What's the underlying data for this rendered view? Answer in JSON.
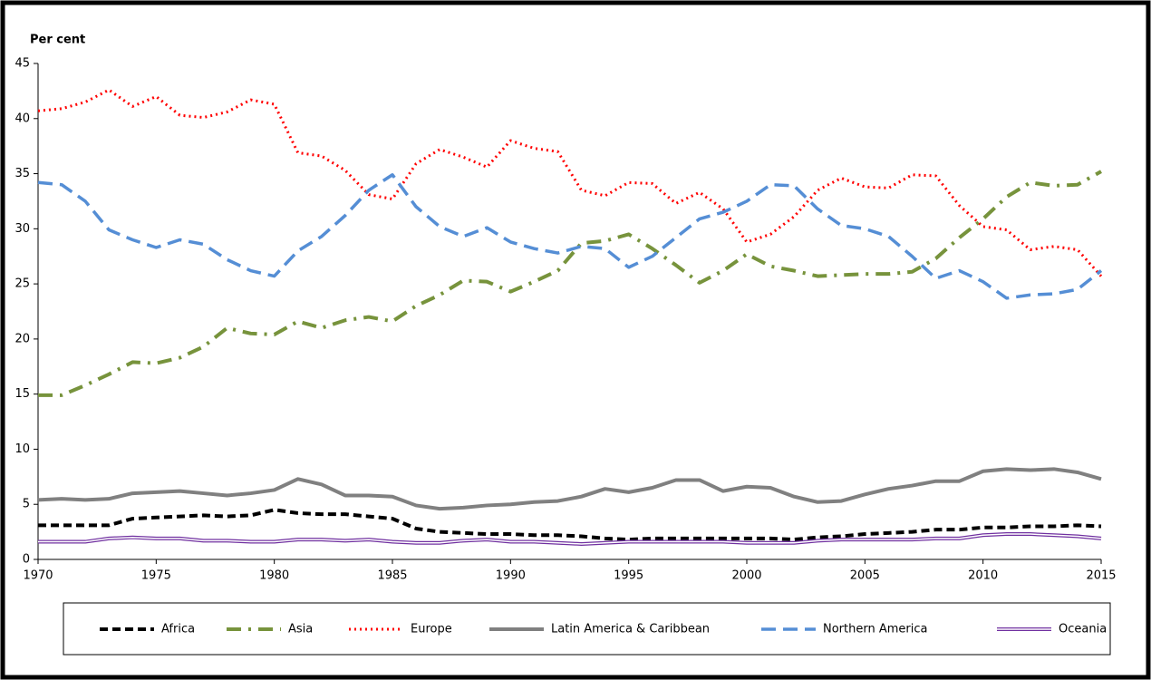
{
  "chart_data": {
    "type": "line",
    "y_label": "Per cent",
    "x": [
      1970,
      1971,
      1972,
      1973,
      1974,
      1975,
      1976,
      1977,
      1978,
      1979,
      1980,
      1981,
      1982,
      1983,
      1984,
      1985,
      1986,
      1987,
      1988,
      1989,
      1990,
      1991,
      1992,
      1993,
      1994,
      1995,
      1996,
      1997,
      1998,
      1999,
      2000,
      2001,
      2002,
      2003,
      2004,
      2005,
      2006,
      2007,
      2008,
      2009,
      2010,
      2011,
      2012,
      2013,
      2014,
      2015
    ],
    "xlim": [
      1970,
      2015
    ],
    "xticks": [
      1970,
      1975,
      1980,
      1985,
      1990,
      1995,
      2000,
      2005,
      2010,
      2015
    ],
    "ylim": [
      0,
      45
    ],
    "yticks": [
      0,
      5,
      10,
      15,
      20,
      25,
      30,
      35,
      40,
      45
    ],
    "legend": "bottom",
    "series": [
      {
        "name": "Africa",
        "color": "#000000",
        "style": "dash",
        "values": [
          3.1,
          3.1,
          3.1,
          3.1,
          3.7,
          3.8,
          3.9,
          4.0,
          3.9,
          4.0,
          4.5,
          4.2,
          4.1,
          4.1,
          3.9,
          3.7,
          2.8,
          2.5,
          2.4,
          2.3,
          2.3,
          2.2,
          2.2,
          2.1,
          1.9,
          1.8,
          1.9,
          1.9,
          1.9,
          1.9,
          1.9,
          1.9,
          1.8,
          2.0,
          2.1,
          2.3,
          2.4,
          2.5,
          2.7,
          2.7,
          2.9,
          2.9,
          3.0,
          3.0,
          3.1,
          3.0
        ]
      },
      {
        "name": "Asia",
        "color": "#77933c",
        "style": "dashdot",
        "values": [
          14.9,
          14.9,
          15.8,
          16.8,
          17.9,
          17.8,
          18.3,
          19.3,
          21.0,
          20.5,
          20.4,
          21.6,
          21.0,
          21.7,
          22.0,
          21.6,
          23.0,
          24.0,
          25.3,
          25.2,
          24.3,
          25.2,
          26.2,
          28.7,
          28.9,
          29.5,
          28.2,
          26.7,
          25.1,
          26.2,
          27.7,
          26.6,
          26.2,
          25.7,
          25.8,
          25.9,
          25.9,
          26.1,
          27.3,
          29.2,
          30.9,
          32.9,
          34.2,
          33.9,
          34.0,
          35.2
        ]
      },
      {
        "name": "Europe",
        "color": "#ff0000",
        "style": "dot",
        "values": [
          40.7,
          40.9,
          41.5,
          42.6,
          41.1,
          42.0,
          40.3,
          40.1,
          40.6,
          41.7,
          41.3,
          36.9,
          36.6,
          35.3,
          33.1,
          32.7,
          35.9,
          37.2,
          36.5,
          35.6,
          38.0,
          37.3,
          37.0,
          33.5,
          33.0,
          34.2,
          34.1,
          32.3,
          33.3,
          31.8,
          28.8,
          29.5,
          31.1,
          33.5,
          34.6,
          33.8,
          33.7,
          34.9,
          34.8,
          32.1,
          30.2,
          29.9,
          28.1,
          28.4,
          28.1,
          25.7
        ]
      },
      {
        "name": "Latin America & Caribbean",
        "color": "#808080",
        "style": "solid",
        "values": [
          5.4,
          5.5,
          5.4,
          5.5,
          6.0,
          6.1,
          6.2,
          6.0,
          5.8,
          6.0,
          6.3,
          7.3,
          6.8,
          5.8,
          5.8,
          5.7,
          4.9,
          4.6,
          4.7,
          4.9,
          5.0,
          5.2,
          5.3,
          5.7,
          6.4,
          6.1,
          6.5,
          7.2,
          7.2,
          6.2,
          6.6,
          6.5,
          5.7,
          5.2,
          5.3,
          5.9,
          6.4,
          6.7,
          7.1,
          7.1,
          8.0,
          8.2,
          8.1,
          8.2,
          7.9,
          7.3
        ]
      },
      {
        "name": "Northern America",
        "color": "#558ed5",
        "style": "longdash",
        "values": [
          34.2,
          34.0,
          32.5,
          29.9,
          29.0,
          28.3,
          29.0,
          28.6,
          27.2,
          26.2,
          25.7,
          28.0,
          29.3,
          31.2,
          33.5,
          34.9,
          32.0,
          30.2,
          29.3,
          30.1,
          28.8,
          28.2,
          27.8,
          28.4,
          28.2,
          26.5,
          27.5,
          29.2,
          30.9,
          31.5,
          32.5,
          34.0,
          33.9,
          31.8,
          30.3,
          30.0,
          29.3,
          27.5,
          25.5,
          26.2,
          25.2,
          23.7,
          24.0,
          24.1,
          24.5,
          26.2
        ]
      },
      {
        "name": "Oceania",
        "color": "#7030a0",
        "style": "double",
        "values": [
          1.6,
          1.6,
          1.6,
          1.9,
          2.0,
          1.9,
          1.9,
          1.7,
          1.7,
          1.6,
          1.6,
          1.8,
          1.8,
          1.7,
          1.8,
          1.6,
          1.5,
          1.5,
          1.7,
          1.8,
          1.6,
          1.6,
          1.5,
          1.4,
          1.5,
          1.6,
          1.6,
          1.6,
          1.6,
          1.6,
          1.5,
          1.5,
          1.5,
          1.7,
          1.8,
          1.8,
          1.8,
          1.8,
          1.9,
          1.9,
          2.2,
          2.3,
          2.3,
          2.2,
          2.1,
          1.9
        ]
      }
    ]
  }
}
